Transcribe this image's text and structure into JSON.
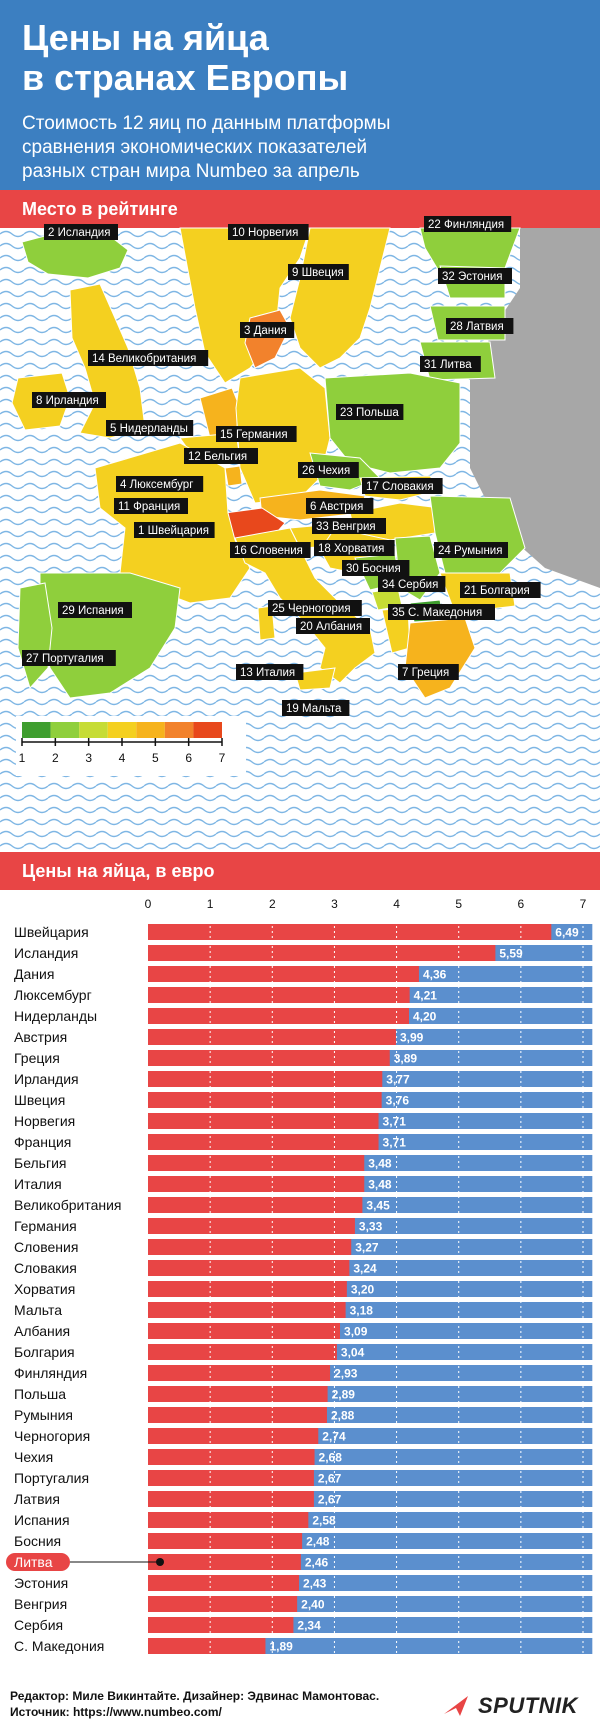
{
  "header": {
    "title_line1": "Цены на яйца",
    "title_line2": "в странах Европы",
    "subtitle_line1": "Стоимость 12 яиц по данным платформы",
    "subtitle_line2": "сравнения экономических показателей",
    "subtitle_line3": "разных стран мира Numbeo за апрель"
  },
  "map_section": {
    "heading": "Место в рейтинге",
    "labels": [
      "2 Исландия",
      "10 Норвегия",
      "22 Финляндия",
      "9 Швеция",
      "32 Эстония",
      "3 Дания",
      "28 Латвия",
      "14 Великобритания",
      "31 Литва",
      "8 Ирландия",
      "23 Польша",
      "5 Нидерланды",
      "15 Германия",
      "12 Бельгия",
      "26 Чехия",
      "4 Люксембург",
      "17 Словакия",
      "6 Австрия",
      "11 Франция",
      "33 Венгрия",
      "1 Швейцария",
      "18 Хорватия",
      "16 Словения",
      "24 Румыния",
      "30 Босния",
      "34 Сербия",
      "21 Болгария",
      "29 Испания",
      "25 Черногория",
      "35 С. Македония",
      "20 Албания",
      "27 Португалия",
      "13 Италия",
      "7 Греция",
      "19 Мальта"
    ],
    "legend": {
      "ticks": [
        "1",
        "2",
        "3",
        "4",
        "5",
        "6",
        "7"
      ],
      "colors": [
        "#3f9e2f",
        "#8fcf3c",
        "#c6dc35",
        "#f4d020",
        "#f6b31d",
        "#f2822c",
        "#e8481c"
      ]
    },
    "colors": {
      "sea": "#ffffff",
      "wave": "#7eb6e4",
      "neighbor": "#a7a7a7"
    }
  },
  "bars_section": {
    "heading": "Цены на яйца, в евро"
  },
  "chart_data": {
    "type": "bar",
    "orientation": "horizontal",
    "title": "Цены на яйца, в евро",
    "xlim": [
      0,
      7
    ],
    "ticks": [
      0,
      1,
      2,
      3,
      4,
      5,
      6,
      7
    ],
    "max_bar_value": 7.15,
    "categories": [
      "Швейцария",
      "Исландия",
      "Дания",
      "Люксембург",
      "Нидерланды",
      "Австрия",
      "Греция",
      "Ирландия",
      "Швеция",
      "Норвегия",
      "Франция",
      "Бельгия",
      "Италия",
      "Великобритания",
      "Германия",
      "Словения",
      "Словакия",
      "Хорватия",
      "Мальта",
      "Албания",
      "Болгария",
      "Финляндия",
      "Польша",
      "Румыния",
      "Черногория",
      "Чехия",
      "Португалия",
      "Латвия",
      "Испания",
      "Босния",
      "Литва",
      "Эстония",
      "Венгрия",
      "Сербия",
      "С. Македония"
    ],
    "values": [
      6.49,
      5.59,
      4.36,
      4.21,
      4.2,
      3.99,
      3.89,
      3.77,
      3.76,
      3.71,
      3.71,
      3.48,
      3.48,
      3.45,
      3.33,
      3.27,
      3.24,
      3.2,
      3.18,
      3.09,
      3.04,
      2.93,
      2.89,
      2.88,
      2.74,
      2.68,
      2.67,
      2.67,
      2.58,
      2.48,
      2.46,
      2.43,
      2.4,
      2.34,
      1.89
    ],
    "value_labels": [
      "6,49",
      "5,59",
      "4,36",
      "4,21",
      "4,20",
      "3,99",
      "3,89",
      "3,77",
      "3,76",
      "3,71",
      "3,71",
      "3,48",
      "3,48",
      "3,45",
      "3,33",
      "3,27",
      "3,24",
      "3,20",
      "3,18",
      "3,09",
      "3,04",
      "2,93",
      "2,89",
      "2,88",
      "2,74",
      "2,68",
      "2,67",
      "2,67",
      "2,58",
      "2,48",
      "2,46",
      "2,43",
      "2,40",
      "2,34",
      "1,89"
    ],
    "highlight": "Литва",
    "colors": {
      "bar": "#e84545",
      "remainder": "#5b8fce",
      "highlight": "#e84545"
    }
  },
  "footer": {
    "line1": "Редактор: Миле Викинтайте.  Дизайнер: Эдвинас Мамонтовас.",
    "line2": "Источник: https://www.numbeo.com/"
  },
  "logo": {
    "text": "SPUTNIK"
  }
}
